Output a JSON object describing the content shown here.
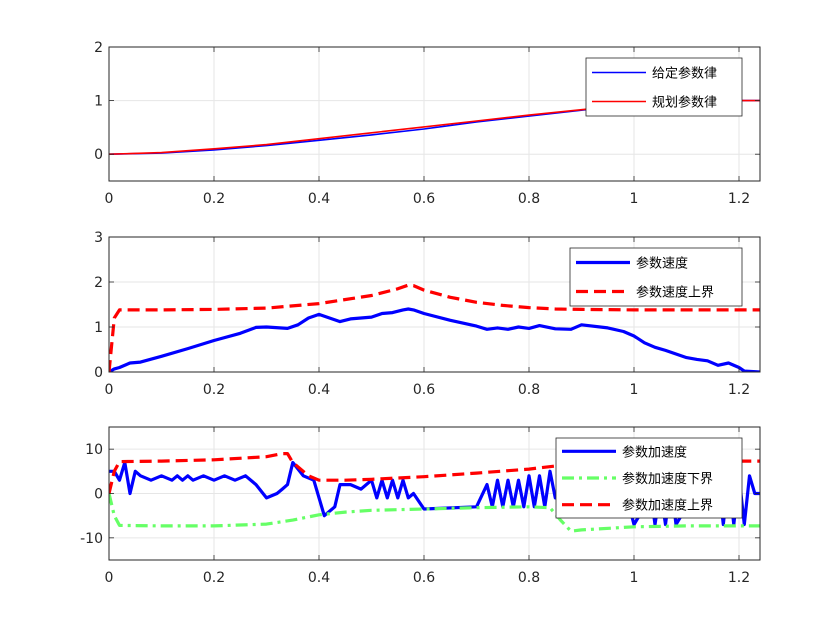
{
  "chart_data": [
    {
      "type": "line",
      "xlim": [
        0,
        1.24
      ],
      "ylim": [
        -0.5,
        2
      ],
      "xticks": [
        "0",
        "0.2",
        "0.4",
        "0.6",
        "0.8",
        "1",
        "1.2"
      ],
      "yticks": [
        "0",
        "1",
        "2"
      ],
      "grid": true,
      "legend_position": "top-right",
      "series": [
        {
          "name": "给定参数律",
          "color": "#0000ff",
          "style": "solid",
          "x": [
            0,
            0.1,
            0.2,
            0.3,
            0.4,
            0.5,
            0.6,
            0.7,
            0.8,
            0.9,
            1.0,
            1.05,
            1.24
          ],
          "y": [
            0,
            0.02,
            0.08,
            0.16,
            0.26,
            0.36,
            0.47,
            0.6,
            0.71,
            0.82,
            0.93,
            1.0,
            1.0
          ]
        },
        {
          "name": "规划参数律",
          "color": "#ff0000",
          "style": "solid",
          "x": [
            0,
            0.1,
            0.2,
            0.3,
            0.4,
            0.5,
            0.6,
            0.7,
            0.8,
            0.9,
            1.0,
            1.05,
            1.24
          ],
          "y": [
            0,
            0.03,
            0.1,
            0.18,
            0.29,
            0.4,
            0.51,
            0.62,
            0.73,
            0.83,
            0.93,
            1.0,
            1.0
          ]
        }
      ]
    },
    {
      "type": "line",
      "xlim": [
        0,
        1.24
      ],
      "ylim": [
        0,
        3
      ],
      "xticks": [
        "0",
        "0.2",
        "0.4",
        "0.6",
        "0.8",
        "1",
        "1.2"
      ],
      "yticks": [
        "0",
        "1",
        "2",
        "3"
      ],
      "grid": true,
      "legend_position": "top-right",
      "series": [
        {
          "name": "参数速度",
          "color": "#0000ff",
          "style": "solid",
          "x": [
            0,
            0.01,
            0.02,
            0.04,
            0.06,
            0.1,
            0.15,
            0.2,
            0.25,
            0.28,
            0.3,
            0.34,
            0.36,
            0.38,
            0.4,
            0.42,
            0.44,
            0.46,
            0.5,
            0.52,
            0.54,
            0.56,
            0.57,
            0.58,
            0.6,
            0.65,
            0.7,
            0.72,
            0.74,
            0.76,
            0.78,
            0.8,
            0.82,
            0.85,
            0.88,
            0.9,
            0.95,
            0.98,
            1.0,
            1.02,
            1.04,
            1.06,
            1.08,
            1.1,
            1.12,
            1.14,
            1.16,
            1.18,
            1.2,
            1.21,
            1.24
          ],
          "y": [
            0.0,
            0.07,
            0.1,
            0.2,
            0.22,
            0.35,
            0.52,
            0.7,
            0.86,
            0.99,
            1.0,
            0.97,
            1.05,
            1.2,
            1.28,
            1.2,
            1.12,
            1.18,
            1.22,
            1.3,
            1.32,
            1.38,
            1.4,
            1.38,
            1.3,
            1.15,
            1.02,
            0.95,
            0.98,
            0.95,
            1.0,
            0.97,
            1.03,
            0.96,
            0.95,
            1.05,
            0.98,
            0.9,
            0.8,
            0.65,
            0.55,
            0.48,
            0.4,
            0.32,
            0.28,
            0.25,
            0.15,
            0.2,
            0.1,
            0.02,
            0.0
          ]
        },
        {
          "name": "参数速度上界",
          "color": "#ff0000",
          "style": "dashed",
          "x": [
            0,
            0.01,
            0.02,
            0.1,
            0.2,
            0.3,
            0.4,
            0.5,
            0.55,
            0.57,
            0.58,
            0.6,
            0.65,
            0.7,
            0.75,
            0.8,
            0.85,
            0.9,
            1.0,
            1.1,
            1.24
          ],
          "y": [
            0.0,
            1.2,
            1.38,
            1.38,
            1.39,
            1.42,
            1.52,
            1.7,
            1.85,
            1.93,
            1.92,
            1.82,
            1.66,
            1.55,
            1.48,
            1.43,
            1.4,
            1.39,
            1.38,
            1.38,
            1.38
          ]
        }
      ]
    },
    {
      "type": "line",
      "xlim": [
        0,
        1.24
      ],
      "ylim": [
        -15,
        15
      ],
      "xticks": [
        "0",
        "0.2",
        "0.4",
        "0.6",
        "0.8",
        "1",
        "1.2"
      ],
      "yticks": [
        "-10",
        "0",
        "10"
      ],
      "grid": true,
      "legend_position": "top-right",
      "series": [
        {
          "name": "参数加速度",
          "color": "#0000ff",
          "style": "solid",
          "x": [
            0,
            0.01,
            0.02,
            0.03,
            0.04,
            0.05,
            0.06,
            0.08,
            0.1,
            0.12,
            0.13,
            0.14,
            0.15,
            0.16,
            0.18,
            0.2,
            0.22,
            0.24,
            0.26,
            0.28,
            0.3,
            0.32,
            0.33,
            0.34,
            0.35,
            0.37,
            0.39,
            0.41,
            0.43,
            0.44,
            0.46,
            0.48,
            0.5,
            0.51,
            0.52,
            0.53,
            0.54,
            0.55,
            0.56,
            0.57,
            0.58,
            0.6,
            0.7,
            0.72,
            0.73,
            0.74,
            0.75,
            0.76,
            0.77,
            0.78,
            0.79,
            0.8,
            0.81,
            0.82,
            0.83,
            0.84,
            0.85,
            0.9,
            0.92,
            0.94,
            0.96,
            0.98,
            1.0,
            1.02,
            1.03,
            1.04,
            1.05,
            1.06,
            1.07,
            1.08,
            1.1,
            1.12,
            1.14,
            1.16,
            1.17,
            1.18,
            1.19,
            1.2,
            1.21,
            1.22,
            1.23,
            1.24
          ],
          "y": [
            5,
            5,
            3,
            7,
            0,
            5,
            4,
            3,
            4,
            3,
            4,
            3,
            4,
            3,
            4,
            3,
            4,
            3,
            4,
            2,
            -1,
            0,
            1,
            2,
            7,
            4,
            3,
            -5,
            -3,
            2,
            2,
            1,
            3,
            -1,
            3,
            -1,
            3,
            -1,
            3,
            -1,
            0,
            -3.5,
            -3,
            2,
            -3,
            3,
            -3,
            3,
            -3,
            3,
            -3,
            4,
            -3,
            4,
            -3,
            5,
            -1,
            -1,
            3,
            2,
            1,
            2,
            -7,
            -3,
            2,
            -7,
            1,
            -7,
            3,
            -7,
            -3,
            2,
            0,
            4,
            -7,
            4,
            -7,
            4,
            -7,
            4,
            0,
            0
          ]
        },
        {
          "name": "参数加速度下界",
          "color": "#66ff66",
          "style": "dashdot",
          "x": [
            0,
            0.01,
            0.02,
            0.1,
            0.2,
            0.3,
            0.35,
            0.4,
            0.45,
            0.5,
            0.6,
            0.7,
            0.8,
            0.84,
            0.86,
            0.88,
            0.9,
            1.0,
            1.1,
            1.24
          ],
          "y": [
            0,
            -5,
            -7.2,
            -7.3,
            -7.3,
            -6.9,
            -6.0,
            -4.8,
            -4.2,
            -3.8,
            -3.5,
            -3.2,
            -3.0,
            -3.2,
            -6.0,
            -8.5,
            -8.2,
            -7.5,
            -7.3,
            -7.3
          ]
        },
        {
          "name": "参数加速度上界",
          "color": "#ff0000",
          "style": "dashed",
          "x": [
            0,
            0.01,
            0.02,
            0.1,
            0.2,
            0.3,
            0.33,
            0.34,
            0.35,
            0.38,
            0.4,
            0.45,
            0.5,
            0.6,
            0.7,
            0.8,
            0.85,
            0.88,
            0.9,
            1.0,
            1.1,
            1.24
          ],
          "y": [
            0,
            5,
            7.2,
            7.3,
            7.6,
            8.3,
            9.0,
            9.0,
            7.0,
            4.0,
            3.0,
            3.0,
            3.2,
            3.8,
            4.6,
            5.5,
            6.2,
            7.2,
            7.3,
            7.3,
            7.3,
            7.3
          ]
        }
      ]
    }
  ]
}
